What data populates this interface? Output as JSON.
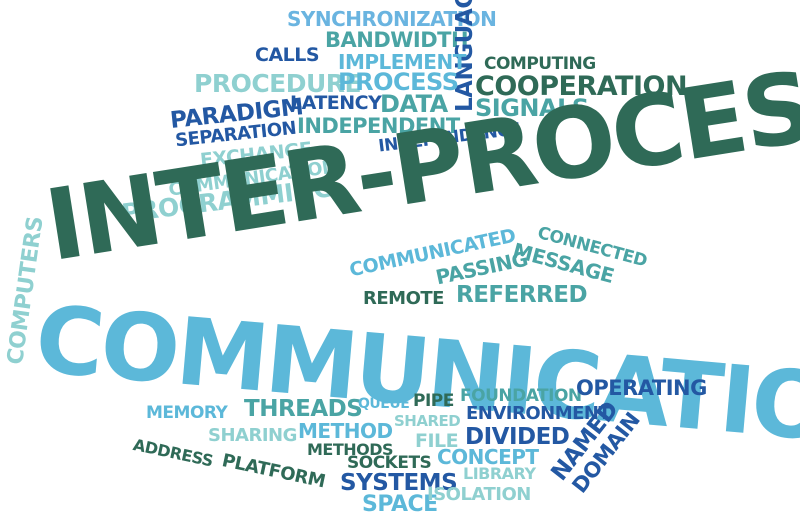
{
  "palette": {
    "dark_green": "#2f6a57",
    "teal": "#4aa4a4",
    "navy": "#2358a3",
    "sky_blue": "#5cb8d9",
    "pale_teal": "#8fd0d0",
    "light_blue": "#6ab4e0"
  },
  "words": {
    "inter_process": "INTER-PROCESS",
    "communication": "COMMUNICATION",
    "synchronization": "SYNCHRONIZATION",
    "calls": "CALLS",
    "bandwidth": "BANDWIDTH",
    "language": "LANGUAGE",
    "implement": "IMPLEMENT",
    "computing": "COMPUTING",
    "procedure": "PROCEDURE",
    "process": "PROCESS",
    "cooperation": "COOPERATION",
    "paradigm": "PARADIGM",
    "latency": "LATENCY",
    "data": "DATA",
    "signals": "SIGNALS",
    "separation": "SEPARATION",
    "independent": "INDEPENDENT",
    "exchange": "EXCHANGE",
    "independence": "INDEPENDENCE",
    "communication_small": "COMMUNICATION",
    "programming": "PROGRAMMING",
    "computers": "COMPUTERS",
    "connected": "CONNECTED",
    "communicated": "COMMUNICATED",
    "message": "MESSAGE",
    "passing": "PASSING",
    "remote": "REMOTE",
    "referred": "REFERRED",
    "memory": "MEMORY",
    "threads": "THREADS",
    "queue": "QUEUE",
    "pipe": "PIPE",
    "foundation": "FOUNDATION",
    "operating": "OPERATING",
    "sharing": "SHARING",
    "method": "METHOD",
    "shared": "SHARED",
    "environment": "ENVIRONMENT",
    "address": "ADDRESS",
    "methods": "METHODS",
    "file": "FILE",
    "divided": "DIVIDED",
    "platform": "PLATFORM",
    "sockets": "SOCKETS",
    "concept": "CONCEPT",
    "named": "NAMED",
    "domain": "DOMAIN",
    "systems": "SYSTEMS",
    "library": "LIBRARY",
    "space": "SPACE",
    "isolation": "ISOLATION"
  }
}
